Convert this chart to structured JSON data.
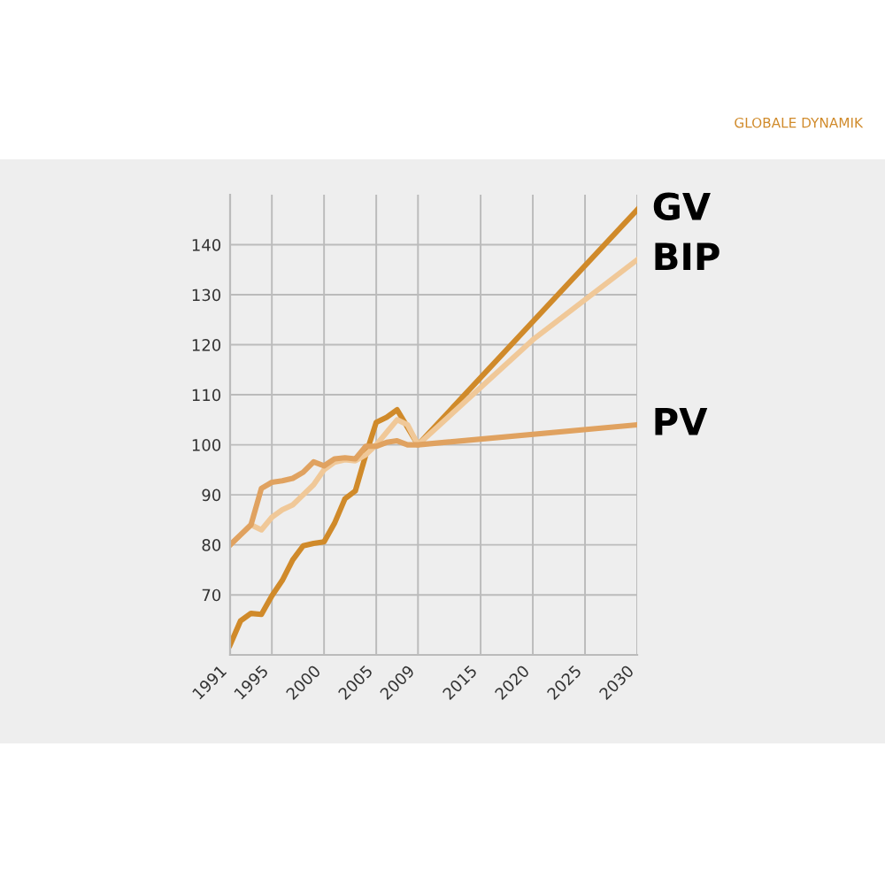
{
  "chart_data": {
    "type": "line",
    "title": "GLOBALE DYNAMIK",
    "ylim": [
      58,
      150
    ],
    "yticks": [
      70,
      80,
      90,
      100,
      110,
      120,
      130,
      140
    ],
    "xlim": [
      1991,
      2030
    ],
    "xticks": [
      1991,
      1995,
      2000,
      2005,
      2009,
      2015,
      2020,
      2025,
      2030
    ],
    "grid": true,
    "legend": false,
    "marker": "none",
    "line_style": "solid",
    "series": [
      {
        "name": "GV",
        "color": "#d08a2a",
        "x": [
          1991,
          1992,
          1993,
          1994,
          1995,
          1996,
          1997,
          1998,
          1999,
          2000,
          2001,
          2002,
          2003,
          2004,
          2005,
          2006,
          2007,
          2008,
          2009,
          2030
        ],
        "values": [
          60,
          64.8,
          66.3,
          66.1,
          69.8,
          72.9,
          77,
          79.8,
          80.3,
          80.6,
          84.3,
          89.2,
          90.8,
          98,
          104.5,
          105.5,
          107,
          103.5,
          100,
          147
        ]
      },
      {
        "name": "BIP",
        "color": "#f0c898",
        "x": [
          1991,
          1992,
          1993,
          1994,
          1995,
          1996,
          1997,
          1998,
          1999,
          2000,
          2001,
          2002,
          2003,
          2004,
          2005,
          2006,
          2007,
          2008,
          2009,
          2020,
          2030
        ],
        "values": [
          80,
          82,
          84,
          83,
          85.5,
          87,
          88,
          90,
          92,
          95,
          96.5,
          97,
          96.8,
          98,
          100,
          102.5,
          105,
          104,
          100,
          121,
          137
        ]
      },
      {
        "name": "PV",
        "color": "#e0a260",
        "x": [
          1991,
          1992,
          1993,
          1994,
          1995,
          1996,
          1997,
          1998,
          1999,
          2000,
          2001,
          2002,
          2003,
          2004,
          2005,
          2006,
          2007,
          2008,
          2009,
          2030
        ],
        "values": [
          80,
          82,
          84,
          91.3,
          92.5,
          92.8,
          93.3,
          94.5,
          96.6,
          95.8,
          97.2,
          97.4,
          97.2,
          99.7,
          99.7,
          100.5,
          100.8,
          100,
          100,
          104
        ]
      }
    ]
  }
}
